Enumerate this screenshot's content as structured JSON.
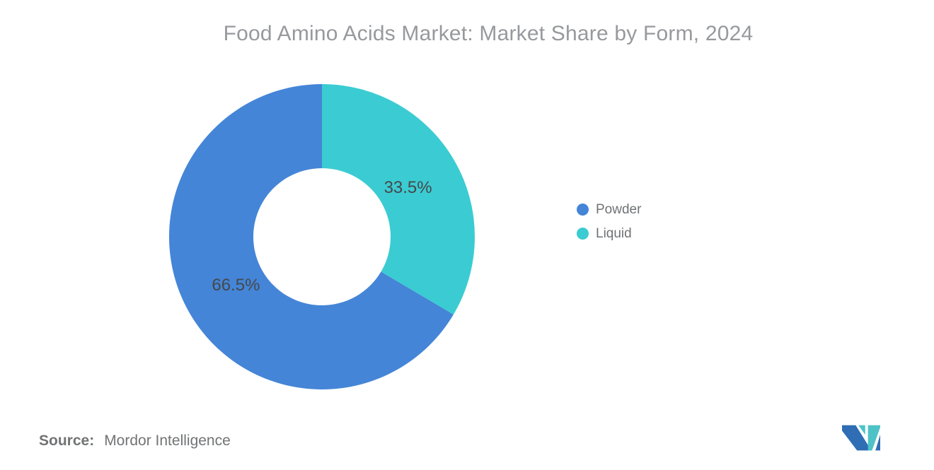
{
  "title": "Food Amino Acids Market: Market Share by Form, 2024",
  "source": {
    "label": "Source:",
    "value": "Mordor Intelligence"
  },
  "logo": {
    "name": "mordor-intelligence-logo",
    "blue": "#2f6db5",
    "teal": "#4ec3c7"
  },
  "chart_data": {
    "type": "pie",
    "subtype": "doughnut",
    "title": "Food Amino Acids Market: Market Share by Form, 2024",
    "unit": "%",
    "slices": [
      {
        "label": "Powder",
        "value": 66.5,
        "display": "66.5%",
        "color": "#4485d7"
      },
      {
        "label": "Liquid",
        "value": 33.5,
        "display": "33.5%",
        "color": "#3accd2"
      }
    ],
    "start_angle_deg": 0,
    "direction": "clockwise",
    "first_slice_at_top": "Liquid",
    "inner_radius_ratio": 0.45,
    "legend_position": "right",
    "data_labels": "inside",
    "label_color": "#46484b",
    "title_color": "#97999c",
    "legend_text_color": "#6f7275"
  }
}
